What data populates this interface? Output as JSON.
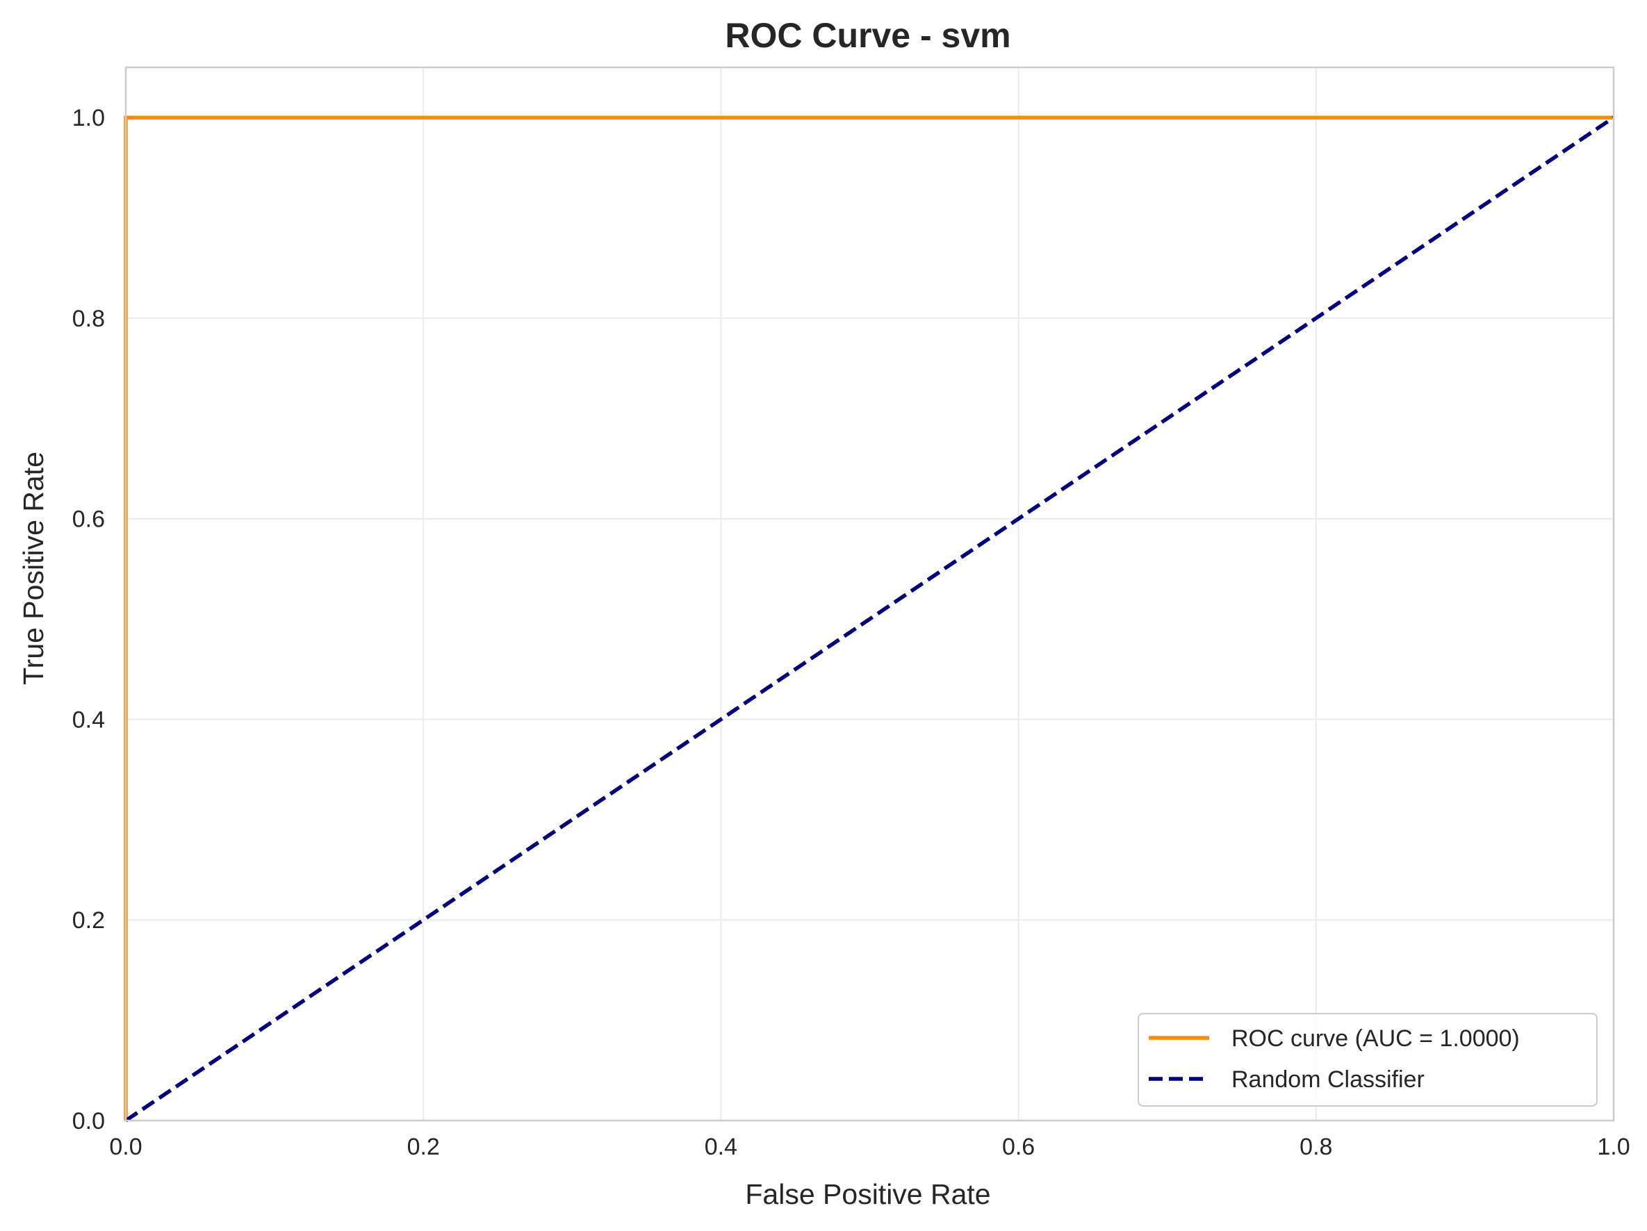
{
  "chart_data": {
    "type": "line",
    "title": "ROC Curve - svm",
    "xlabel": "False Positive Rate",
    "ylabel": "True Positive Rate",
    "xlim": [
      0.0,
      1.0
    ],
    "ylim": [
      0.0,
      1.05
    ],
    "xticks": [
      0.0,
      0.2,
      0.4,
      0.6,
      0.8,
      1.0
    ],
    "xtick_labels": [
      "0.0",
      "0.2",
      "0.4",
      "0.6",
      "0.8",
      "1.0"
    ],
    "yticks": [
      0.0,
      0.2,
      0.4,
      0.6,
      0.8,
      1.0
    ],
    "ytick_labels": [
      "0.0",
      "0.2",
      "0.4",
      "0.6",
      "0.8",
      "1.0"
    ],
    "grid": true,
    "legend_position": "lower-right",
    "series": [
      {
        "name": "ROC curve (AUC = 1.0000)",
        "color": "#ff8c00",
        "style": "solid",
        "x": [
          0.0,
          0.0,
          1.0
        ],
        "y": [
          0.0,
          1.0,
          1.0
        ]
      },
      {
        "name": "Random Classifier",
        "color": "#000080",
        "style": "dashed",
        "x": [
          0.0,
          1.0
        ],
        "y": [
          0.0,
          1.0
        ]
      }
    ]
  }
}
